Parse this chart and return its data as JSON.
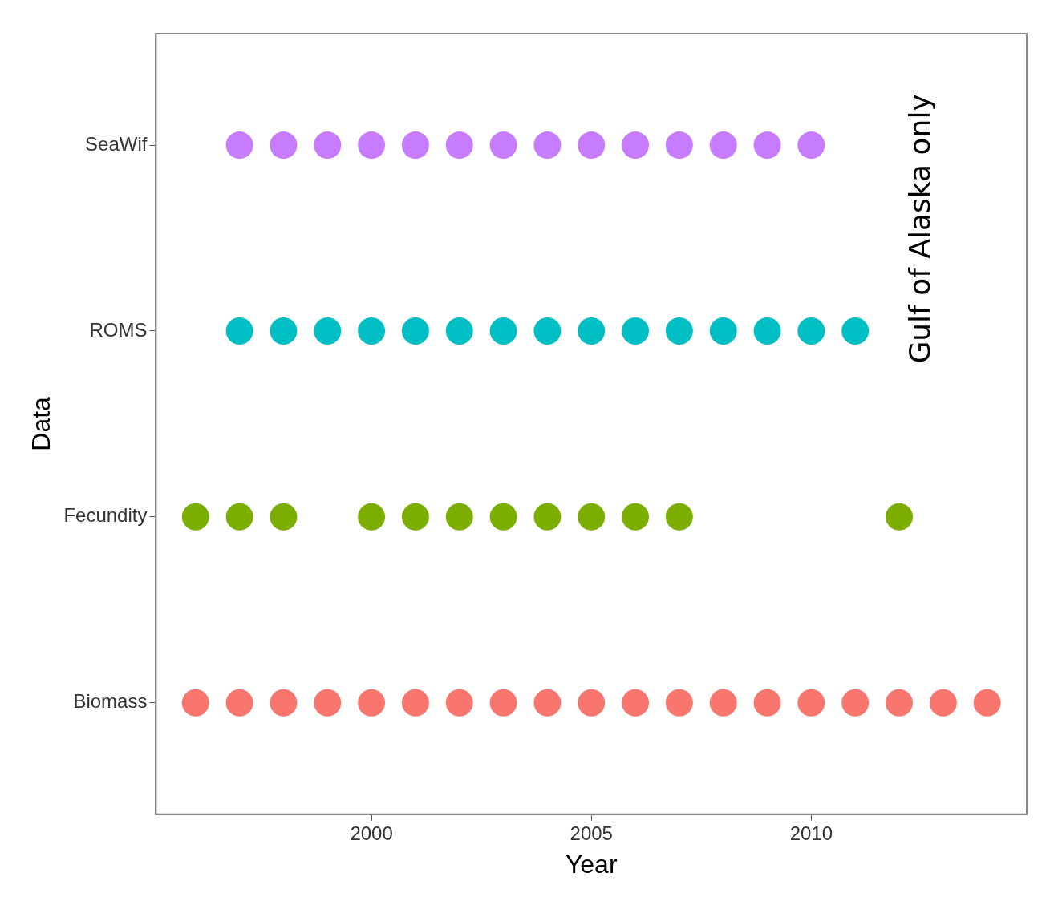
{
  "chart_data": {
    "type": "scatter",
    "orientation": "horizontal",
    "xlabel": "Year",
    "ylabel": "Data",
    "annotations": [
      "Gulf of Alaska only"
    ],
    "categories": [
      "SeaWif",
      "ROMS",
      "Fecundity",
      "Biomass"
    ],
    "xlim": [
      1995.1,
      2014.9
    ],
    "xticks": [
      2000,
      2005,
      2010
    ],
    "grid": false,
    "legend": false,
    "marker": "circle",
    "series": [
      {
        "color": "#c77cff",
        "x": [
          "SeaWif",
          "SeaWif",
          "SeaWif",
          "SeaWif",
          "SeaWif",
          "SeaWif",
          "SeaWif",
          "SeaWif",
          "SeaWif",
          "SeaWif",
          "SeaWif",
          "SeaWif",
          "SeaWif",
          "SeaWif"
        ],
        "values": [
          1997,
          1998,
          1999,
          2000,
          2001,
          2002,
          2003,
          2004,
          2005,
          2006,
          2007,
          2008,
          2009,
          2010
        ]
      },
      {
        "color": "#00bfc4",
        "x": [
          "ROMS",
          "ROMS",
          "ROMS",
          "ROMS",
          "ROMS",
          "ROMS",
          "ROMS",
          "ROMS",
          "ROMS",
          "ROMS",
          "ROMS",
          "ROMS",
          "ROMS",
          "ROMS",
          "ROMS"
        ],
        "values": [
          1997,
          1998,
          1999,
          2000,
          2001,
          2002,
          2003,
          2004,
          2005,
          2006,
          2007,
          2008,
          2009,
          2010,
          2011
        ]
      },
      {
        "color": "#7cae00",
        "x": [
          "Fecundity",
          "Fecundity",
          "Fecundity",
          "Fecundity",
          "Fecundity",
          "Fecundity",
          "Fecundity",
          "Fecundity",
          "Fecundity",
          "Fecundity",
          "Fecundity",
          "Fecundity"
        ],
        "values": [
          1996,
          1997,
          1998,
          2000,
          2001,
          2002,
          2003,
          2004,
          2005,
          2006,
          2007,
          2012
        ]
      },
      {
        "color": "#f8766d",
        "x": [
          "Biomass",
          "Biomass",
          "Biomass",
          "Biomass",
          "Biomass",
          "Biomass",
          "Biomass",
          "Biomass",
          "Biomass",
          "Biomass",
          "Biomass",
          "Biomass",
          "Biomass",
          "Biomass",
          "Biomass",
          "Biomass",
          "Biomass",
          "Biomass",
          "Biomass"
        ],
        "values": [
          1996,
          1997,
          1998,
          1999,
          2000,
          2001,
          2002,
          2003,
          2004,
          2005,
          2006,
          2007,
          2008,
          2009,
          2010,
          2011,
          2012,
          2013,
          2014
        ]
      }
    ]
  }
}
